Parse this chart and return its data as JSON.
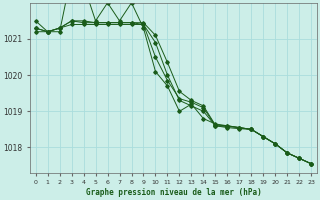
{
  "title": "Graphe pression niveau de la mer (hPa)",
  "bg_color": "#cceee8",
  "grid_color": "#aadddd",
  "line_color": "#1a5c1a",
  "x_labels": [
    "0",
    "1",
    "2",
    "3",
    "4",
    "5",
    "6",
    "7",
    "8",
    "9",
    "10",
    "11",
    "12",
    "13",
    "14",
    "15",
    "16",
    "17",
    "18",
    "19",
    "20",
    "21",
    "22",
    "23"
  ],
  "ylim": [
    1017.3,
    1022.0
  ],
  "yticks": [
    1018,
    1019,
    1020,
    1021
  ],
  "series": [
    [
      1021.5,
      1021.2,
      1021.2,
      1022.8,
      1022.5,
      1021.5,
      1022.0,
      1021.5,
      1022.0,
      1021.3,
      1020.1,
      1019.7,
      1019.0,
      1019.2,
      1018.8,
      1018.65,
      1018.6,
      1018.55,
      1018.5,
      1018.3,
      1018.1,
      1017.85,
      1017.7,
      1017.55
    ],
    [
      1021.3,
      1021.2,
      1021.3,
      1021.5,
      1021.5,
      1021.45,
      1021.45,
      1021.45,
      1021.45,
      1021.45,
      1021.1,
      1020.35,
      1019.55,
      1019.3,
      1019.15,
      1018.62,
      1018.6,
      1018.55,
      1018.5,
      1018.3,
      1018.1,
      1017.85,
      1017.7,
      1017.55
    ],
    [
      1021.3,
      1021.2,
      1021.3,
      1021.4,
      1021.4,
      1021.4,
      1021.4,
      1021.4,
      1021.4,
      1021.4,
      1020.5,
      1019.85,
      1019.35,
      1019.25,
      1019.1,
      1018.6,
      1018.58,
      1018.55,
      1018.5,
      1018.3,
      1018.1,
      1017.85,
      1017.7,
      1017.55
    ],
    [
      1021.2,
      1021.2,
      1021.3,
      1021.5,
      1021.45,
      1021.45,
      1021.45,
      1021.45,
      1021.45,
      1021.4,
      1020.9,
      1020.0,
      1019.3,
      1019.15,
      1019.0,
      1018.6,
      1018.55,
      1018.52,
      1018.5,
      1018.3,
      1018.1,
      1017.85,
      1017.7,
      1017.55
    ]
  ]
}
